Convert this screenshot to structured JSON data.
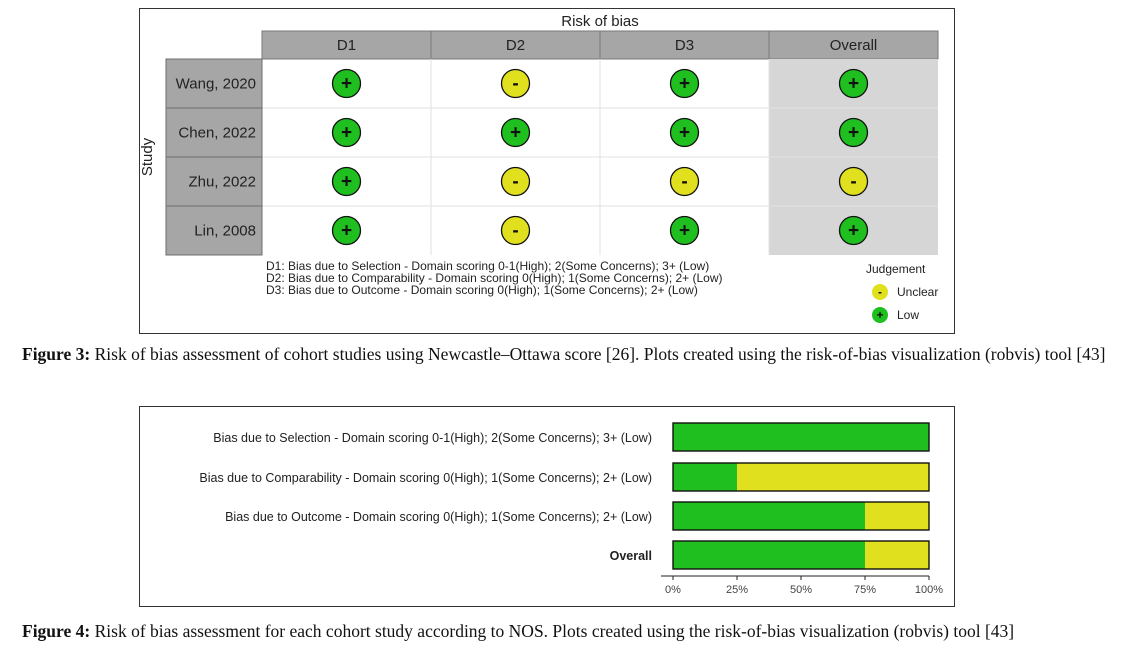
{
  "figure3": {
    "plot_title": "Risk of bias",
    "y_axis_label": "Study",
    "columns": [
      "D1",
      "D2",
      "D3",
      "Overall"
    ],
    "rows": [
      {
        "study": "Wang, 2020",
        "judgements": [
          "low",
          "unclear",
          "low",
          "low"
        ]
      },
      {
        "study": "Chen, 2022",
        "judgements": [
          "low",
          "low",
          "low",
          "low"
        ]
      },
      {
        "study": "Zhu, 2022",
        "judgements": [
          "low",
          "unclear",
          "unclear",
          "unclear"
        ]
      },
      {
        "study": "Lin, 2008",
        "judgements": [
          "low",
          "unclear",
          "low",
          "low"
        ]
      }
    ],
    "symbols": {
      "low": "+",
      "unclear": "-"
    },
    "colors": {
      "low": "#1fbf1f",
      "unclear": "#e0e01e",
      "header": "#a6a6a6",
      "overall_bg": "#d6d6d6",
      "study_bg": "#a6a6a6"
    },
    "domain_notes": [
      "D1: Bias due to Selection - Domain scoring 0-1(High); 2(Some Concerns); 3+ (Low)",
      "D2: Bias due to Comparability - Domain scoring 0(High); 1(Some Concerns); 2+ (Low)",
      "D3: Bias due to Outcome - Domain scoring 0(High); 1(Some Concerns); 2+ (Low)"
    ],
    "legend_title": "Judgement",
    "legend_items": [
      {
        "key": "unclear",
        "label": "Unclear"
      },
      {
        "key": "low",
        "label": "Low"
      }
    ],
    "caption_label": "Figure 3:",
    "caption_text": " Risk of bias assessment of cohort studies using Newcastle–Ottawa score [26]. Plots created using the risk-of-bias visualization (robvis) tool [43]"
  },
  "chart_data": {
    "type": "bar",
    "orientation": "horizontal",
    "stacked": true,
    "categories": [
      "Bias due to Selection - Domain scoring 0-1(High); 2(Some Concerns); 3+ (Low)",
      "Bias due to Comparability - Domain scoring 0(High); 1(Some Concerns); 2+ (Low)",
      "Bias due to Outcome - Domain scoring 0(High); 1(Some Concerns); 2+ (Low)",
      "Overall"
    ],
    "series": [
      {
        "key": "low",
        "color": "#1fbf1f",
        "values": [
          100,
          25,
          75,
          75
        ]
      },
      {
        "key": "unclear",
        "color": "#e0e01e",
        "values": [
          0,
          75,
          25,
          25
        ]
      }
    ],
    "xticks": [
      "0%",
      "25%",
      "50%",
      "75%",
      "100%"
    ],
    "xlim": [
      0,
      100
    ],
    "bold_category": "Overall"
  },
  "figure4": {
    "caption_label": "Figure 4:",
    "caption_text": " Risk of bias assessment for each cohort study according to NOS. Plots created using the risk-of-bias visualization (robvis) tool [43]"
  }
}
